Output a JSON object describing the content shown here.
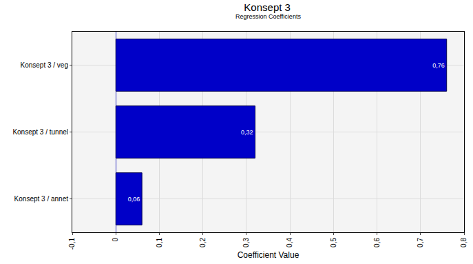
{
  "chart_data": {
    "type": "bar",
    "orientation": "horizontal",
    "title": "Konsept 3",
    "subtitle": "Regression Coefficients",
    "x_label": "Coefficient Value",
    "categories": [
      "Konsept 3 / veg",
      "Konsept 3 / tunnel",
      "Konsept 3 / annet"
    ],
    "values": [
      0.76,
      0.32,
      0.06
    ],
    "value_labels": [
      "0,76",
      "0,32",
      "0,06"
    ],
    "data_labels": true,
    "color": "#0000c8",
    "xlim": [
      -0.1,
      0.8
    ],
    "xticks": [
      {
        "value": -0.1,
        "label": "-0,1"
      },
      0,
      {
        "value": 0.1,
        "label": "0,1"
      },
      {
        "value": 0.2,
        "label": "0,2"
      },
      {
        "value": 0.3,
        "label": "0,3"
      },
      {
        "value": 0.4,
        "label": "0,4"
      },
      {
        "value": 0.5,
        "label": "0,5"
      },
      {
        "value": 0.6,
        "label": "0,6"
      },
      {
        "value": 0.7,
        "label": "0,7"
      },
      {
        "value": 0.8,
        "label": "0,8"
      }
    ],
    "grid": true
  }
}
